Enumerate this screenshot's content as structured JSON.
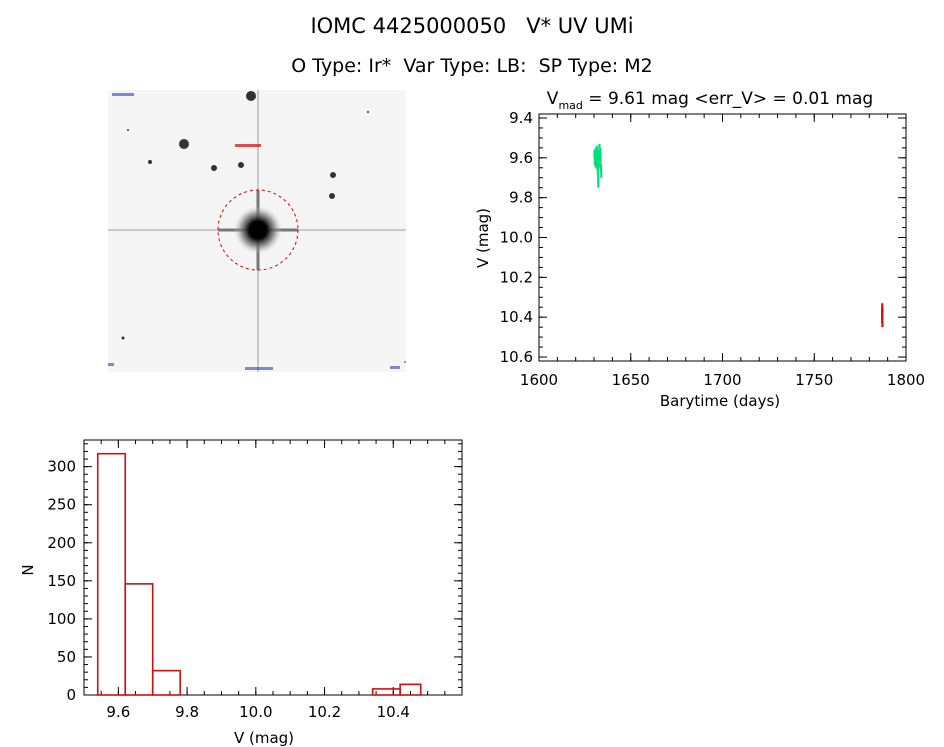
{
  "header": {
    "title": "IOMC 4425000050   V* UV UMi",
    "subtitle": "O Type: Ir*  Var Type: LB:  SP Type: M2"
  },
  "colors": {
    "early_points": "#00e07a",
    "late_points": "#d01010",
    "histogram": "#cc1111",
    "circle": "#dd0000"
  },
  "chart_data": [
    {
      "type": "scatter",
      "title": "V",
      "title_sub": "mad",
      "title_rest": " = 9.61 mag <err_V> = 0.01 mag",
      "xlabel": "Barytime (days)",
      "ylabel": "V (mag)",
      "xlim": [
        1600,
        1800
      ],
      "ylim": [
        10.62,
        9.38
      ],
      "y_inverted": true,
      "xticks": [
        "1600",
        "1650",
        "1700",
        "1750",
        "1800"
      ],
      "yticks": [
        "9.4",
        "9.6",
        "9.8",
        "10.0",
        "10.2",
        "10.4",
        "10.6"
      ],
      "series": [
        {
          "color_key": "early_points",
          "points": [
            [
              1630.2,
              9.58
            ],
            [
              1630.4,
              9.62
            ],
            [
              1630.6,
              9.6
            ],
            [
              1630.8,
              9.57
            ],
            [
              1631.0,
              9.63
            ],
            [
              1631.1,
              9.59
            ],
            [
              1631.3,
              9.61
            ],
            [
              1631.5,
              9.56
            ],
            [
              1631.7,
              9.64
            ],
            [
              1631.9,
              9.6
            ],
            [
              1632.0,
              9.66
            ],
            [
              1632.2,
              9.7
            ],
            [
              1632.3,
              9.73
            ],
            [
              1632.5,
              9.62
            ],
            [
              1632.7,
              9.58
            ],
            [
              1632.9,
              9.55
            ],
            [
              1633.0,
              9.61
            ],
            [
              1633.2,
              9.63
            ],
            [
              1633.4,
              9.57
            ],
            [
              1633.5,
              9.6
            ],
            [
              1633.7,
              9.65
            ],
            [
              1633.9,
              9.68
            ]
          ]
        },
        {
          "color_key": "late_points",
          "points": [
            [
              1787.0,
              10.35
            ],
            [
              1787.0,
              10.37
            ],
            [
              1787.0,
              10.39
            ],
            [
              1787.0,
              10.41
            ],
            [
              1787.1,
              10.43
            ],
            [
              1787.1,
              10.38
            ]
          ]
        }
      ]
    },
    {
      "type": "bar",
      "xlabel": "V (mag)",
      "ylabel": "N",
      "xlim": [
        9.5,
        10.6
      ],
      "ylim": [
        0,
        335
      ],
      "xticks": [
        "9.6",
        "9.8",
        "10.0",
        "10.2",
        "10.4"
      ],
      "yticks": [
        "0",
        "50",
        "100",
        "150",
        "200",
        "250",
        "300"
      ],
      "bins": [
        {
          "x0": 9.54,
          "x1": 9.62,
          "count": 317
        },
        {
          "x0": 9.62,
          "x1": 9.7,
          "count": 146
        },
        {
          "x0": 9.7,
          "x1": 9.78,
          "count": 32
        },
        {
          "x0": 9.78,
          "x1": 9.86,
          "count": 0
        },
        {
          "x0": 9.86,
          "x1": 9.94,
          "count": 0
        },
        {
          "x0": 9.94,
          "x1": 10.02,
          "count": 0
        },
        {
          "x0": 10.02,
          "x1": 10.1,
          "count": 0
        },
        {
          "x0": 10.1,
          "x1": 10.18,
          "count": 0
        },
        {
          "x0": 10.18,
          "x1": 10.26,
          "count": 0
        },
        {
          "x0": 10.26,
          "x1": 10.34,
          "count": 0
        },
        {
          "x0": 10.34,
          "x1": 10.42,
          "count": 8
        },
        {
          "x0": 10.42,
          "x1": 10.48,
          "count": 14
        }
      ]
    }
  ]
}
